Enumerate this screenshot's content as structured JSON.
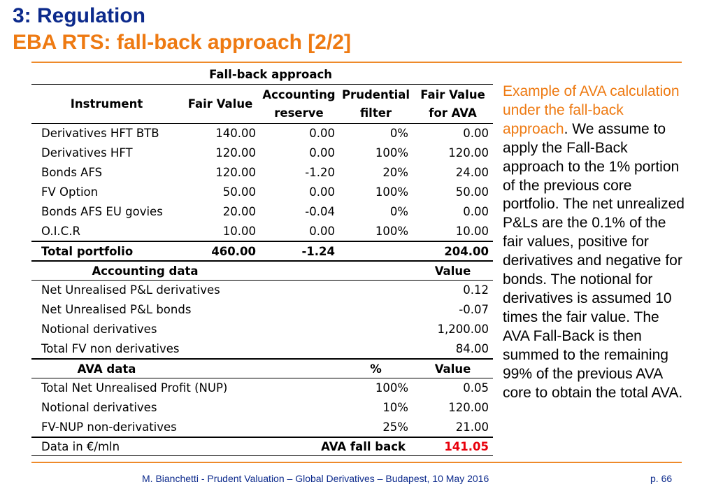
{
  "header": {
    "title": "3: Regulation",
    "subtitle": "EBA RTS: fall-back approach [2/2]"
  },
  "table": {
    "caption": "Fall-back approach",
    "columns": [
      "Instrument",
      "Fair Value",
      "Accounting reserve",
      "Prudential filter",
      "Fair Value for AVA"
    ],
    "col3_line1": "Accounting",
    "col3_line2": "reserve",
    "col4_line1": "Prudential",
    "col4_line2": "filter",
    "col5_line1": "Fair Value",
    "col5_line2": "for AVA",
    "rows": [
      [
        "Derivatives HFT BTB",
        "140.00",
        "0.00",
        "0%",
        "0.00"
      ],
      [
        "Derivatives HFT",
        "120.00",
        "0.00",
        "100%",
        "120.00"
      ],
      [
        "Bonds AFS",
        "120.00",
        "-1.20",
        "20%",
        "24.00"
      ],
      [
        "FV Option",
        "50.00",
        "0.00",
        "100%",
        "50.00"
      ],
      [
        "Bonds AFS EU govies",
        "20.00",
        "-0.04",
        "0%",
        "0.00"
      ],
      [
        "O.I.C.R",
        "10.00",
        "0.00",
        "100%",
        "10.00"
      ]
    ],
    "total": [
      "Total portfolio",
      "460.00",
      "-1.24",
      "",
      "204.00"
    ],
    "accounting": {
      "header": "Accounting data",
      "value_header": "Value",
      "rows": [
        [
          "Net Unrealised P&L derivatives",
          "0.12"
        ],
        [
          "Net Unrealised P&L bonds",
          "-0.07"
        ],
        [
          "Notional derivatives",
          "1,200.00"
        ],
        [
          "Total FV non derivatives",
          "84.00"
        ]
      ]
    },
    "ava": {
      "header": "AVA data",
      "pct_header": "%",
      "value_header": "Value",
      "rows": [
        [
          "Total Net Unrealised Profit (NUP)",
          "100%",
          "0.05"
        ],
        [
          "Notional derivatives",
          "10%",
          "120.00"
        ],
        [
          "FV-NUP non-derivatives",
          "25%",
          "21.00"
        ]
      ],
      "final": [
        "Data in €/mln",
        "AVA fall back",
        "141.05"
      ]
    }
  },
  "paragraph": {
    "highlight": "Example of AVA calculation under the fall-back approach",
    "rest": ". We assume to apply the Fall-Back approach to the 1% portion of the previous core portfolio. The net unrealized P&Ls are the 0.1% of the fair values, positive for derivatives and negative for bonds. The notional for derivatives is assumed 10 times the fair value. The AVA Fall-Back is then summed to the remaining 99% of the previous AVA core to obtain the total AVA."
  },
  "footer": {
    "text": "M. Bianchetti - Prudent Valuation – Global Derivatives – Budapest, 10 May 2016",
    "page": "p. 66"
  },
  "colors": {
    "title": "#0c2a8c",
    "accent": "#ee7a12",
    "highlight_value": "#e8000c"
  }
}
